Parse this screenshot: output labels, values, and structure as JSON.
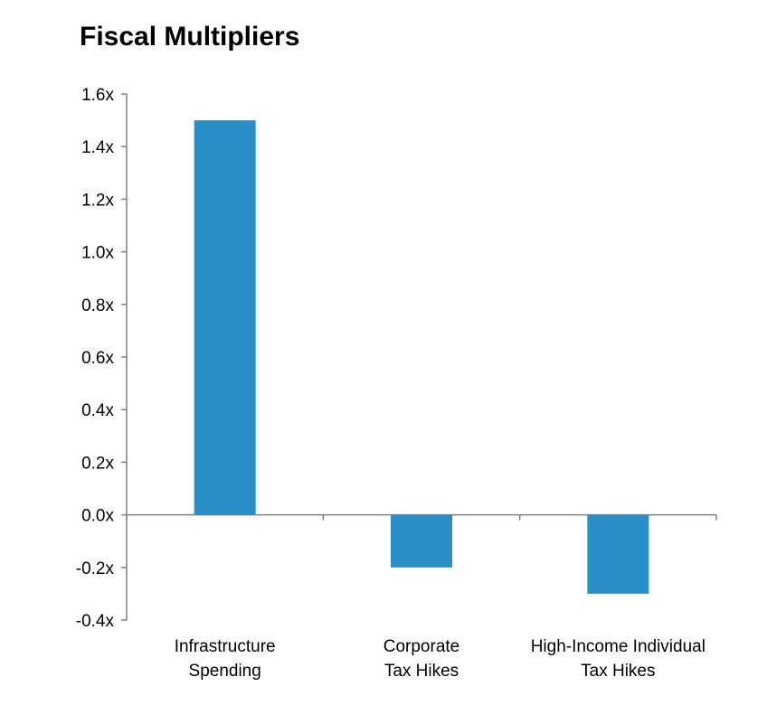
{
  "chart_data": {
    "type": "bar",
    "title": "Fiscal Multipliers",
    "categories": [
      [
        "Infrastructure",
        "Spending"
      ],
      [
        "Corporate",
        "Tax Hikes"
      ],
      [
        "High-Income Individual",
        "Tax Hikes"
      ]
    ],
    "values": [
      1.5,
      -0.2,
      -0.3
    ],
    "ylim": [
      -0.4,
      1.6
    ],
    "yticks": [
      "1.6x",
      "1.4x",
      "1.2x",
      "1.0x",
      "0.8x",
      "0.6x",
      "0.4x",
      "0.2x",
      "0.0x",
      "-0.2x",
      "-0.4x"
    ],
    "ytick_values": [
      1.6,
      1.4,
      1.2,
      1.0,
      0.8,
      0.6,
      0.4,
      0.2,
      0.0,
      -0.2,
      -0.4
    ],
    "bar_color": "#2a8fc7",
    "axis_color": "#808080",
    "grid": false,
    "legend": "none"
  }
}
